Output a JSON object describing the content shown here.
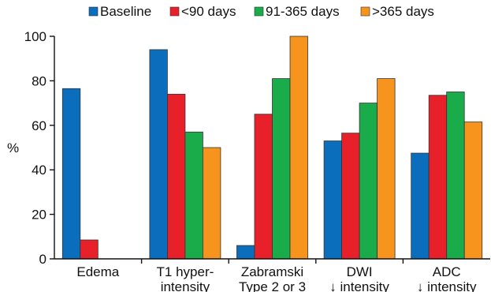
{
  "chart_data": {
    "type": "bar",
    "ylabel": "%",
    "ylim": [
      0,
      100
    ],
    "yticks": [
      "0",
      "20",
      "40",
      "60",
      "80",
      "100"
    ],
    "grid": false,
    "legend_position": "top",
    "categories": [
      [
        "Edema"
      ],
      [
        "T1 hyper-",
        "intensity"
      ],
      [
        "Zabramski",
        "Type 2 or 3"
      ],
      [
        "DWI",
        "↓ intensity"
      ],
      [
        "ADC",
        "↓ intensity"
      ]
    ],
    "series": [
      {
        "name": "Baseline",
        "color": "#0a6ebd",
        "values": [
          76.5,
          94,
          6,
          53,
          47.5
        ]
      },
      {
        "name": "<90 days",
        "color": "#e8202a",
        "values": [
          8.5,
          74,
          65,
          56.5,
          73.5
        ]
      },
      {
        "name": "91-365 days",
        "color": "#1aab4b",
        "values": [
          0,
          57,
          81,
          70,
          75
        ]
      },
      {
        "name": ">365 days",
        "color": "#f7941d",
        "values": [
          null,
          50,
          100,
          81,
          61.5
        ]
      }
    ]
  }
}
